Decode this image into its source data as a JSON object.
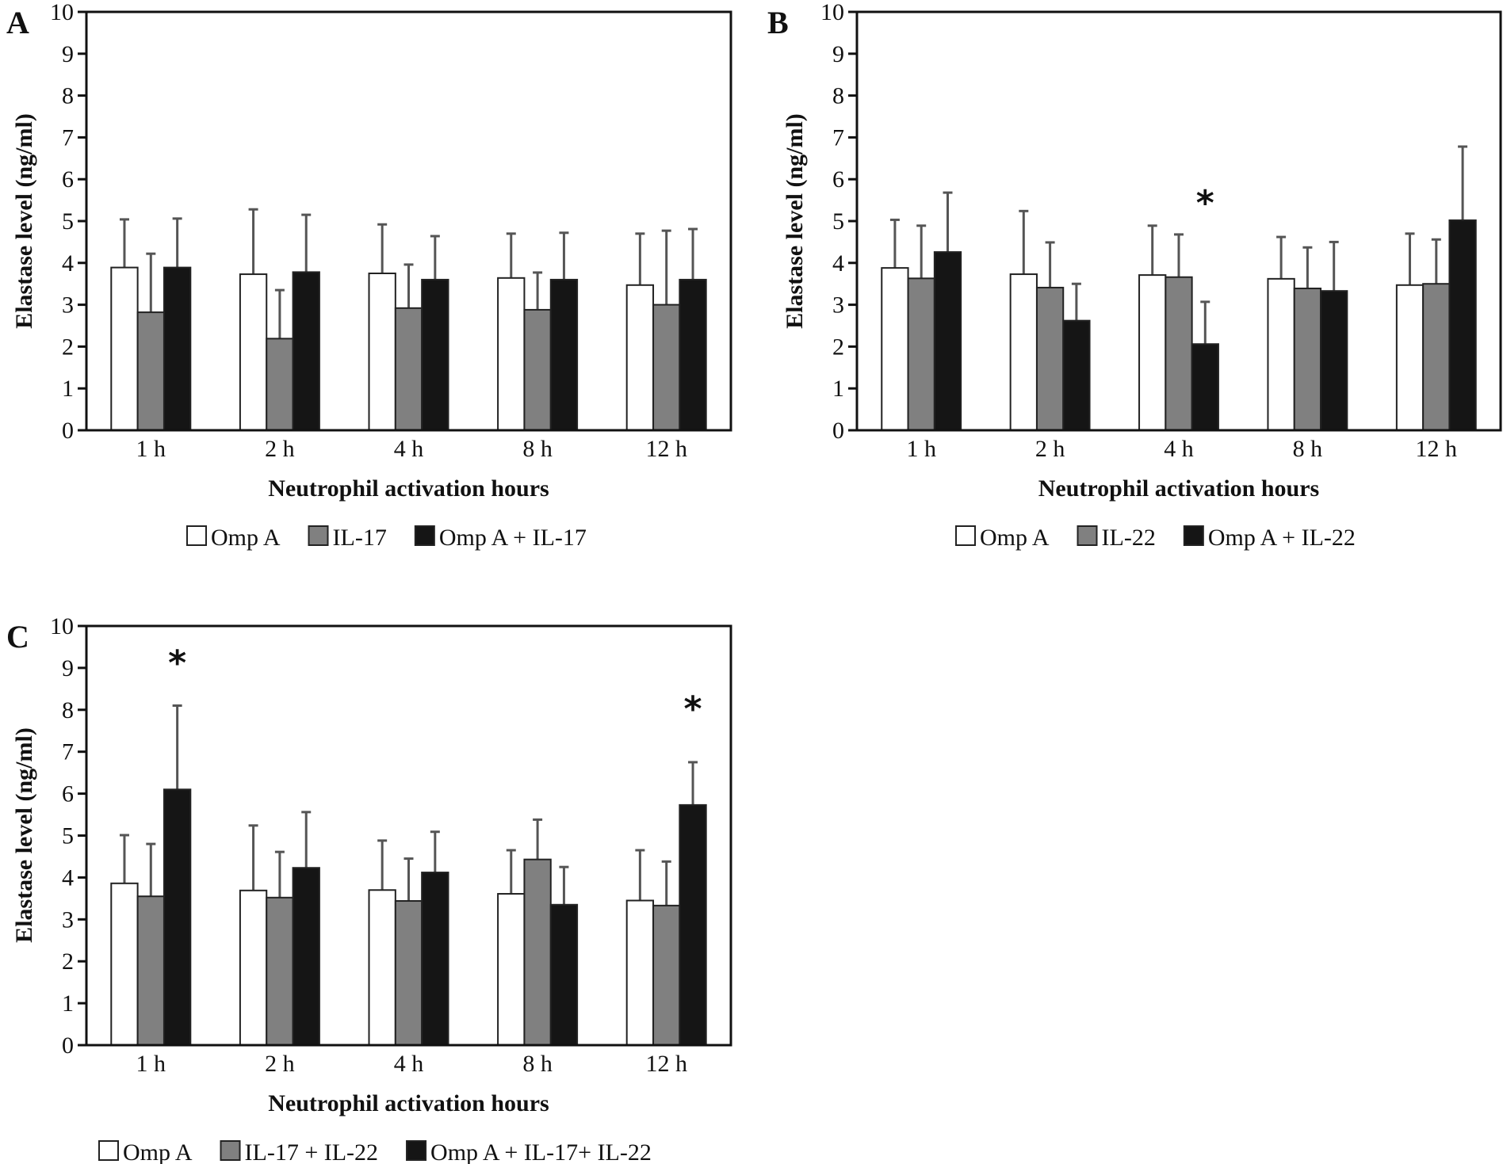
{
  "chart_data": [
    {
      "panel": "A",
      "type": "bar",
      "ylabel": "Elastase level (ng/ml)",
      "xlabel": "Neutrophil activation hours",
      "ylim": [
        0,
        10
      ],
      "yticks": [
        "0",
        "1",
        "2",
        "3",
        "4",
        "5",
        "6",
        "7",
        "8",
        "9",
        "10"
      ],
      "categories": [
        "1 h",
        "2 h",
        "4 h",
        "8 h",
        "12 h"
      ],
      "series": [
        {
          "name": "Omp A",
          "color": "#ffffff",
          "values": [
            3.89,
            3.73,
            3.75,
            3.64,
            3.47
          ],
          "error_upper": [
            5.04,
            5.28,
            4.92,
            4.7,
            4.7
          ]
        },
        {
          "name": "IL-17",
          "color": "#808080",
          "values": [
            2.82,
            2.19,
            2.92,
            2.88,
            3.0
          ],
          "error_upper": [
            4.22,
            3.35,
            3.96,
            3.77,
            4.77
          ]
        },
        {
          "name": "Omp A + IL-17",
          "color": "#151515",
          "values": [
            3.89,
            3.78,
            3.6,
            3.6,
            3.6
          ],
          "error_upper": [
            5.06,
            5.15,
            4.64,
            4.72,
            4.81
          ]
        }
      ],
      "annotations": [],
      "legend": "bottom"
    },
    {
      "panel": "B",
      "type": "bar",
      "ylabel": "Elastase level (ng/ml)",
      "xlabel": "Neutrophil activation hours",
      "ylim": [
        0,
        10
      ],
      "yticks": [
        "0",
        "1",
        "2",
        "3",
        "4",
        "5",
        "6",
        "7",
        "8",
        "9",
        "10"
      ],
      "categories": [
        "1 h",
        "2 h",
        "4 h",
        "8 h",
        "12 h"
      ],
      "series": [
        {
          "name": "Omp A",
          "color": "#ffffff",
          "values": [
            3.88,
            3.73,
            3.71,
            3.62,
            3.47
          ],
          "error_upper": [
            5.03,
            5.24,
            4.89,
            4.62,
            4.7
          ]
        },
        {
          "name": "IL-22",
          "color": "#808080",
          "values": [
            3.63,
            3.41,
            3.66,
            3.39,
            3.5
          ],
          "error_upper": [
            4.89,
            4.49,
            4.68,
            4.37,
            4.56
          ]
        },
        {
          "name": "Omp A + IL-22",
          "color": "#151515",
          "values": [
            4.26,
            2.62,
            2.06,
            3.33,
            5.02
          ],
          "error_upper": [
            5.68,
            3.5,
            3.07,
            4.5,
            6.78
          ]
        }
      ],
      "annotations": [
        {
          "text": "*",
          "category": "4 h",
          "series": 2,
          "y": 5.45
        }
      ],
      "legend": "bottom"
    },
    {
      "panel": "C",
      "type": "bar",
      "ylabel": "Elastase level (ng/ml)",
      "xlabel": "Neutrophil activation hours",
      "ylim": [
        0,
        10
      ],
      "yticks": [
        "0",
        "1",
        "2",
        "3",
        "4",
        "5",
        "6",
        "7",
        "8",
        "9",
        "10"
      ],
      "categories": [
        "1 h",
        "2 h",
        "4 h",
        "8 h",
        "12 h"
      ],
      "series": [
        {
          "name": "Omp A",
          "color": "#ffffff",
          "values": [
            3.86,
            3.69,
            3.7,
            3.61,
            3.45
          ],
          "error_upper": [
            5.01,
            5.24,
            4.88,
            4.65,
            4.65
          ]
        },
        {
          "name": "IL-17 + IL-22",
          "color": "#808080",
          "values": [
            3.55,
            3.52,
            3.44,
            4.43,
            3.33
          ],
          "error_upper": [
            4.8,
            4.61,
            4.45,
            5.38,
            4.38
          ]
        },
        {
          "name": "Omp A + IL-17+ IL-22",
          "color": "#151515",
          "values": [
            6.1,
            4.23,
            4.12,
            3.35,
            5.73
          ],
          "error_upper": [
            8.1,
            5.56,
            5.09,
            4.25,
            6.75
          ]
        }
      ],
      "annotations": [
        {
          "text": "*",
          "category": "1 h",
          "series": 2,
          "y": 9.14
        },
        {
          "text": "*",
          "category": "12 h",
          "series": 2,
          "y": 8.04
        }
      ],
      "legend": "bottom"
    }
  ]
}
